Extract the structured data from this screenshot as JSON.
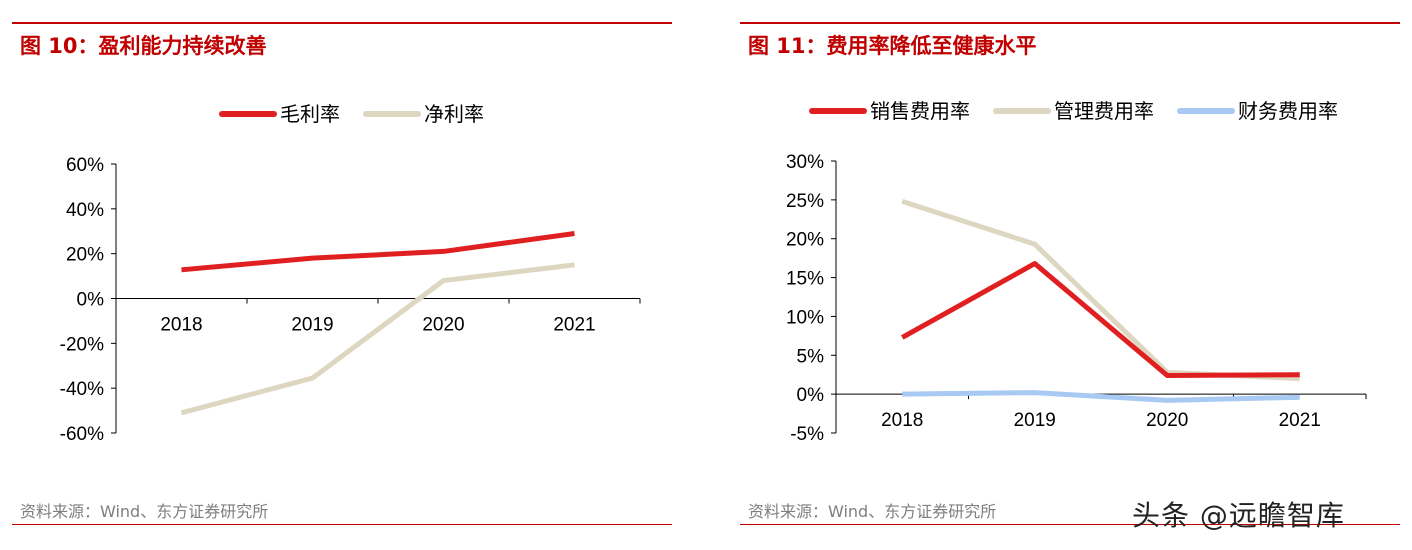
{
  "left": {
    "title": "图 10：盈利能力持续改善",
    "source": "资料来源：Wind、东方证券研究所"
  },
  "right": {
    "title": "图 11：费用率降低至健康水平",
    "source": "资料来源：Wind、东方证券研究所"
  },
  "watermark": "头条 @远瞻智库",
  "chart_data": [
    {
      "type": "line",
      "categories": [
        "2018",
        "2019",
        "2020",
        "2021"
      ],
      "series": [
        {
          "name": "毛利率",
          "values": [
            12.8,
            18.0,
            21.0,
            29.0
          ],
          "color": "#e02020"
        },
        {
          "name": "净利率",
          "values": [
            -51.0,
            -35.5,
            8.0,
            15.0
          ],
          "color": "#ddd6c1"
        }
      ],
      "yticks": [
        "60%",
        "40%",
        "20%",
        "0%",
        "-20%",
        "-40%",
        "-60%"
      ],
      "ylim": [
        -60,
        60
      ],
      "grid": false,
      "legend_position": "top"
    },
    {
      "type": "line",
      "categories": [
        "2018",
        "2019",
        "2020",
        "2021"
      ],
      "series": [
        {
          "name": "销售费用率",
          "values": [
            7.3,
            16.8,
            2.4,
            2.5
          ],
          "color": "#e02020"
        },
        {
          "name": "管理费用率",
          "values": [
            24.8,
            19.3,
            2.8,
            2.0
          ],
          "color": "#ddd6c1"
        },
        {
          "name": "财务费用率",
          "values": [
            0.0,
            0.2,
            -0.8,
            -0.4
          ],
          "color": "#a7c9f2"
        }
      ],
      "yticks": [
        "30%",
        "25%",
        "20%",
        "15%",
        "10%",
        "5%",
        "0%",
        "-5%"
      ],
      "ylim": [
        -5,
        30
      ],
      "grid": false,
      "legend_position": "top"
    }
  ]
}
